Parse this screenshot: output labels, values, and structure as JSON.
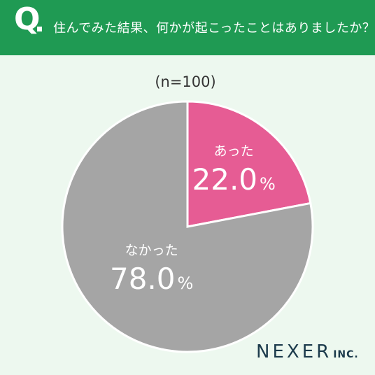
{
  "header": {
    "q_label": "Q",
    "question": "住んでみた結果、何かが起こったことはありましたか？"
  },
  "colors": {
    "header_bg": "#1f9a53",
    "background": "#edf8ef",
    "slice_yes": "#e65c94",
    "slice_no": "#a5a5a5"
  },
  "chart_data": {
    "type": "pie",
    "sample_size_label": "(n=100)",
    "slices": [
      {
        "label": "あった",
        "value": 22.0,
        "display": "22.0",
        "color": "#e65c94"
      },
      {
        "label": "なかった",
        "value": 78.0,
        "display": "78.0",
        "color": "#a5a5a5"
      }
    ],
    "unit": "%"
  },
  "footer": {
    "logo_main": "NEXER",
    "logo_sub": "INC."
  }
}
